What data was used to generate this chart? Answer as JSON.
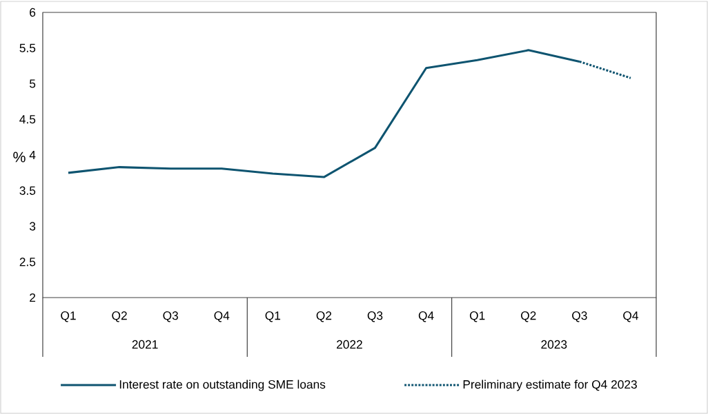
{
  "chart_data": {
    "type": "line",
    "ylabel": "%",
    "categories": [
      "Q1",
      "Q2",
      "Q3",
      "Q4",
      "Q1",
      "Q2",
      "Q3",
      "Q4",
      "Q1",
      "Q2",
      "Q3",
      "Q4"
    ],
    "annotations": [
      "2021",
      "2022",
      "2023"
    ],
    "series": [
      {
        "name": "Interest rate on outstanding SME loans",
        "color": "#0e5470",
        "line_style": "solid",
        "values": [
          3.75,
          3.83,
          3.81,
          3.81,
          3.74,
          3.69,
          4.1,
          5.22,
          5.33,
          5.47,
          5.31,
          null
        ]
      },
      {
        "name": "Preliminary estimate for Q4 2023",
        "color": "#0e5470",
        "line_style": "dotted",
        "values": [
          null,
          null,
          null,
          null,
          null,
          null,
          null,
          null,
          null,
          null,
          5.31,
          5.08
        ]
      }
    ],
    "ylim": [
      2,
      6
    ],
    "yticks": [
      2,
      2.5,
      3,
      3.5,
      4,
      4.5,
      5,
      5.5,
      6
    ],
    "grid": false,
    "legend": "bottom",
    "marker": "none"
  }
}
